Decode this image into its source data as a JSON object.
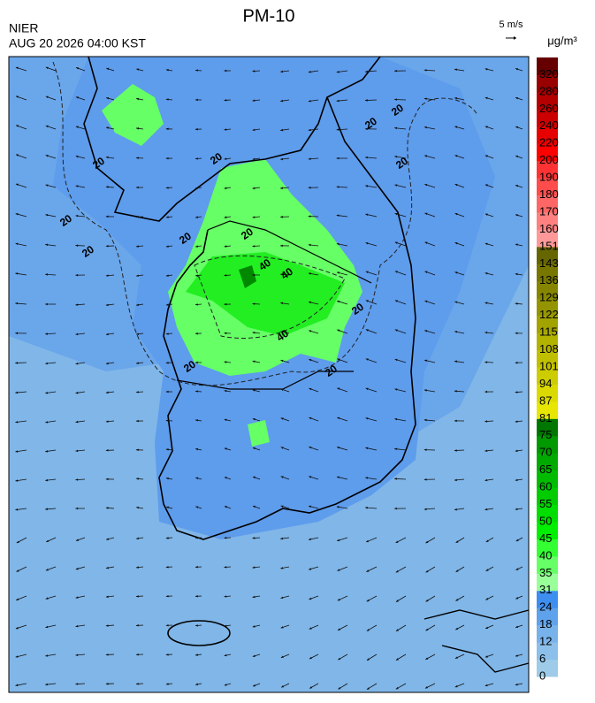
{
  "header": {
    "title": "PM-10",
    "agency": "NIER",
    "datetime": "AUG 20 2026 04:00 KST",
    "wind_scale": "5 m/s",
    "unit": "μg/m³"
  },
  "contour_labels": [
    20,
    20,
    20,
    20,
    20,
    20,
    20,
    20,
    20,
    20,
    40,
    40,
    40,
    20,
    20
  ],
  "colorbar": {
    "labels": [
      0,
      6,
      12,
      18,
      24,
      31,
      35,
      40,
      45,
      50,
      55,
      60,
      65,
      70,
      75,
      81,
      87,
      94,
      101,
      108,
      115,
      122,
      129,
      136,
      143,
      151,
      160,
      170,
      180,
      190,
      200,
      220,
      240,
      260,
      280,
      320
    ],
    "colors": [
      "#9ecbe8",
      "#8cbfea",
      "#78b2ea",
      "#5fa2ec",
      "#3d8ef0",
      "#99ff99",
      "#66ff66",
      "#33ff33",
      "#00ee00",
      "#00dd00",
      "#00cc00",
      "#00bb00",
      "#00aa00",
      "#009900",
      "#007700",
      "#e6e600",
      "#dada00",
      "#cccc00",
      "#bfbf00",
      "#b2b200",
      "#a3a300",
      "#949400",
      "#858500",
      "#777700",
      "#666600",
      "#ff9999",
      "#ff8080",
      "#ff6666",
      "#ff4d4d",
      "#ff3333",
      "#ff0000",
      "#e60000",
      "#cc0000",
      "#b30000",
      "#990000",
      "#660000"
    ]
  }
}
